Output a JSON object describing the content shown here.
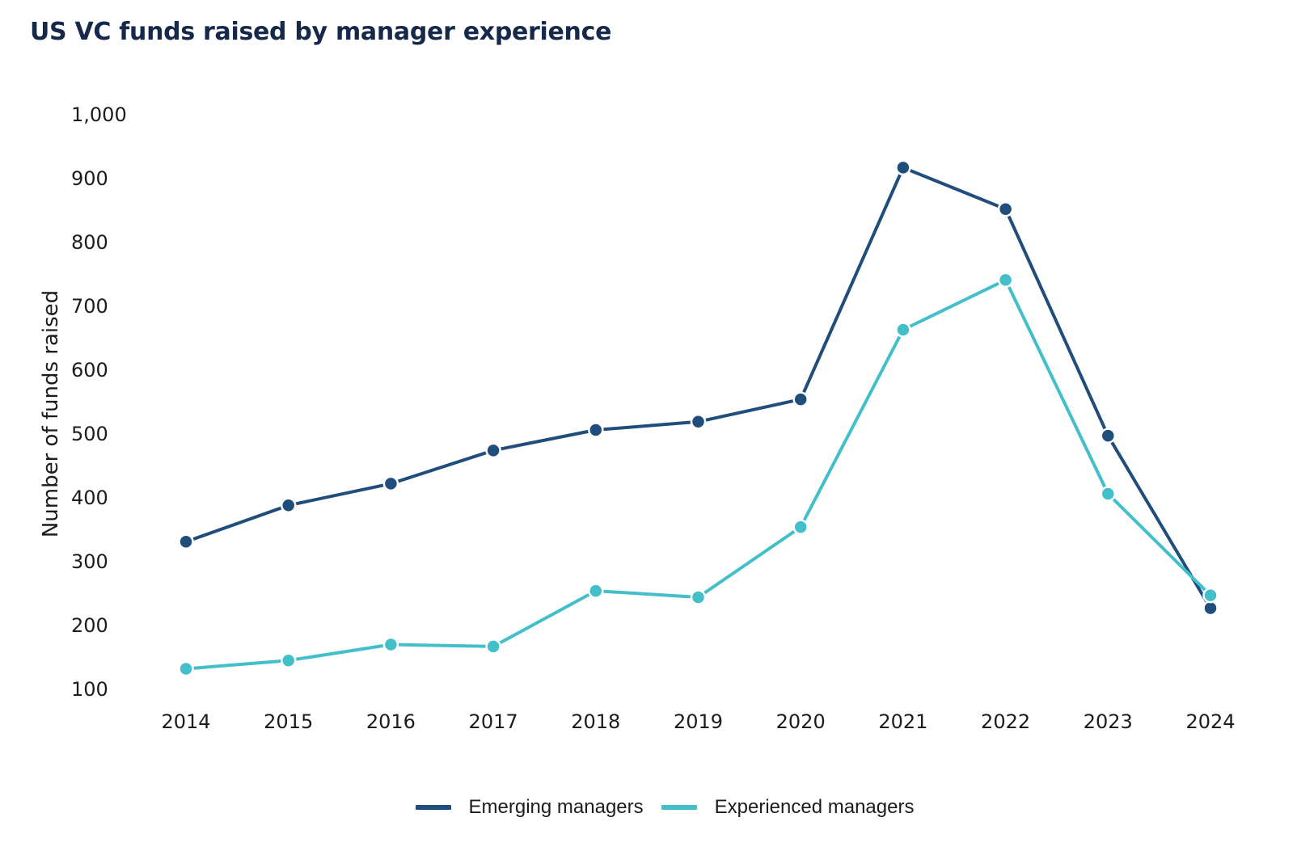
{
  "chart_data": {
    "type": "line",
    "title": "US VC funds raised by manager experience",
    "xlabel": "",
    "ylabel": "Number of funds raised",
    "categories": [
      "2014",
      "2015",
      "2016",
      "2017",
      "2018",
      "2019",
      "2020",
      "2021",
      "2022",
      "2023",
      "2024"
    ],
    "series": [
      {
        "name": "Emerging managers",
        "color": "#1f4e7d",
        "values": [
          330,
          387,
          421,
          473,
          505,
          518,
          553,
          916,
          851,
          496,
          226
        ]
      },
      {
        "name": "Experienced managers",
        "color": "#43bfca",
        "values": [
          131,
          144,
          169,
          166,
          253,
          243,
          353,
          662,
          740,
          405,
          246
        ]
      }
    ],
    "yticks": [
      "100",
      "200",
      "300",
      "400",
      "500",
      "600",
      "700",
      "800",
      "900",
      "1,000"
    ],
    "ylim": [
      100,
      1000
    ],
    "grid": false,
    "legend_position": "bottom-center"
  }
}
